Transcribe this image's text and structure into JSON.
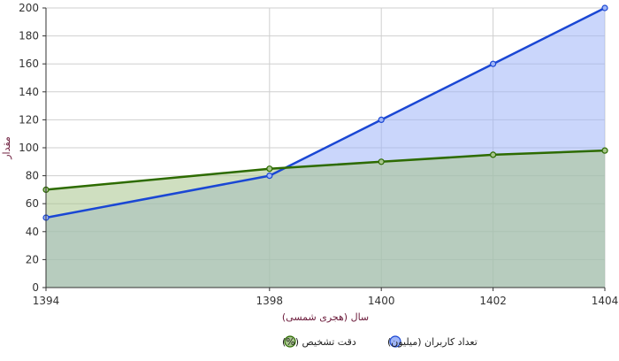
{
  "chart_data": {
    "type": "area",
    "title": "",
    "xlabel": "سال (هجری شمسی)",
    "ylabel": "مقدار",
    "x": [
      1394,
      1398,
      1400,
      1402,
      1404
    ],
    "xlim": [
      1394,
      1404
    ],
    "ylim": [
      0,
      200
    ],
    "x_ticks": [
      1394,
      1398,
      1400,
      1402,
      1404
    ],
    "y_ticks": [
      0,
      20,
      40,
      60,
      80,
      100,
      120,
      140,
      160,
      180,
      200
    ],
    "grid": true,
    "legend_position": "bottom",
    "series": [
      {
        "name": "تعداد کاربران (میلیون)",
        "values": [
          50,
          80,
          120,
          160,
          200
        ],
        "line_color": "#1a47d4",
        "fill_color": "#9fb5f7"
      },
      {
        "name": "دقت تشخیص (%)",
        "values": [
          70,
          85,
          90,
          95,
          98
        ],
        "line_color": "#2d6b00",
        "fill_color": "#a7c58c"
      }
    ]
  }
}
